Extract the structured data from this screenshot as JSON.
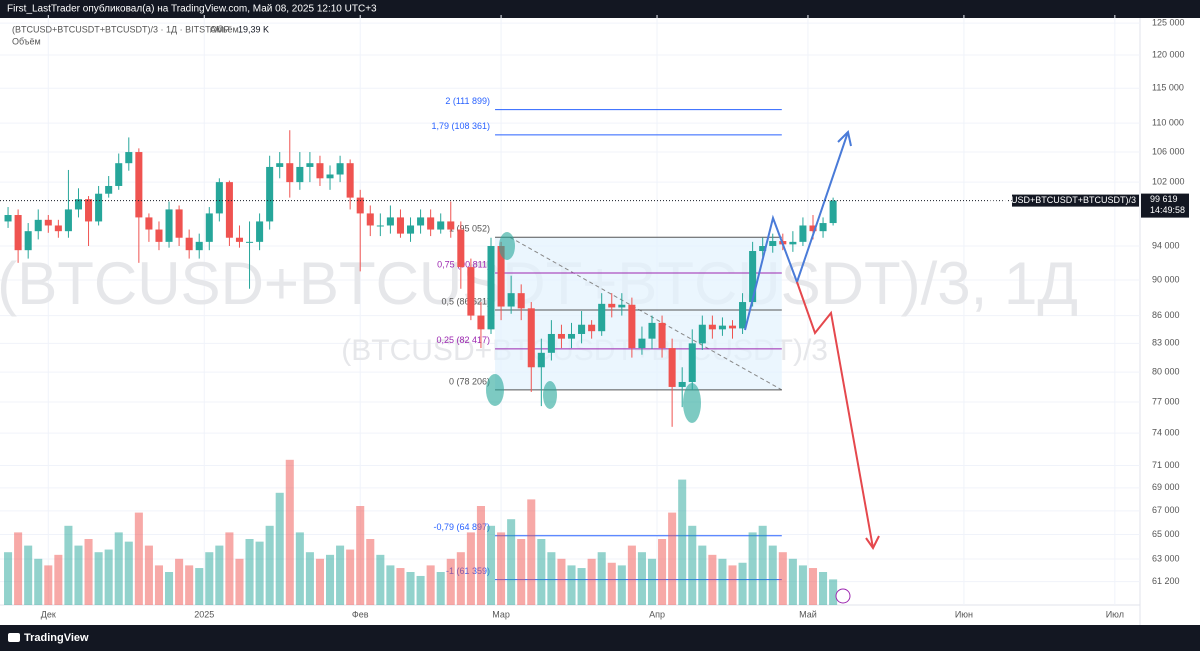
{
  "header": {
    "author_line": "First_LastTrader опубликовал(а) на TradingView.com, Май 08, 2025 12:10 UTC+3"
  },
  "footer": {
    "brand": "TradingView"
  },
  "chart_data": {
    "type": "candlestick",
    "symbol": "(BTCUSD+BTCUSDT+BTCUSDT)/3 · 1Д · BITSTAMP",
    "volume_label": "Объём",
    "volume_last": {
      "value": 19.39,
      "label": "19,39 K"
    },
    "volume_pane_label": "Объём",
    "watermark": "(BTCUSD+BTCUSDT+BTCUSDT)/3, 1Д",
    "watermark_small": "(BTCUSD+BTCUSDT+BTCUSDT)/3",
    "price_tag": "(BTCUSD+BTCUSDT+BTCUSDT)/3",
    "last_price": {
      "value": 99619,
      "label": "99 619"
    },
    "countdown": "14:49:58",
    "up_color": "#26a69a",
    "down_color": "#ef5350",
    "log_scale": true,
    "grid": true,
    "categories": [
      null,
      null,
      null,
      null,
      null,
      null,
      null,
      null,
      null,
      null,
      null,
      null,
      null,
      null,
      null,
      null,
      null,
      null,
      null,
      null,
      null,
      null,
      null,
      null,
      null,
      null,
      null,
      null,
      null,
      null,
      null,
      null,
      null,
      null,
      null,
      null,
      null,
      null,
      null,
      null,
      null,
      null,
      null,
      null,
      null,
      null,
      null,
      null,
      null,
      null,
      null,
      null,
      null,
      null,
      null,
      null,
      null,
      null,
      null,
      null,
      null,
      null,
      null,
      null,
      null,
      null,
      null,
      null,
      null,
      null,
      null,
      null,
      null,
      null,
      null,
      null,
      null,
      null,
      null,
      null,
      null,
      null,
      null
    ],
    "open": [
      97000,
      97800,
      93500,
      95800,
      97200,
      96500,
      95800,
      98500,
      99800,
      97000,
      100500,
      101500,
      104500,
      106000,
      97500,
      96000,
      94500,
      98500,
      95000,
      93500,
      94500,
      98000,
      102000,
      95000,
      94500,
      94500,
      97000,
      104000,
      104500,
      102000,
      104000,
      104500,
      102500,
      103000,
      104500,
      100000,
      98000,
      96500,
      96500,
      97500,
      95500,
      96500,
      97500,
      96000,
      97000,
      96000,
      91500,
      86000,
      84500,
      94000,
      87000,
      88500,
      86800,
      80500,
      82000,
      84000,
      83500,
      84000,
      85000,
      84300,
      87300,
      86900,
      87200,
      82500,
      83500,
      85200,
      82500,
      78500,
      79000,
      83000,
      85000,
      84500,
      84900,
      84600,
      87500,
      93400,
      94000,
      94600,
      94200,
      94500,
      96500,
      95800,
      96800
    ],
    "high": [
      98800,
      98500,
      96800,
      98500,
      97800,
      97200,
      103600,
      101200,
      100200,
      101500,
      102800,
      105800,
      108000,
      106500,
      98000,
      97000,
      99500,
      99000,
      96000,
      95500,
      98800,
      102500,
      102200,
      96500,
      97000,
      98000,
      105500,
      106000,
      109000,
      106000,
      106000,
      105500,
      104200,
      105500,
      105000,
      101000,
      99000,
      98000,
      99000,
      98500,
      97500,
      98500,
      98500,
      98000,
      99500,
      97000,
      92500,
      87500,
      95000,
      94500,
      90500,
      89500,
      87500,
      83500,
      85500,
      85000,
      85200,
      86500,
      85500,
      88500,
      88500,
      88500,
      88000,
      84800,
      86000,
      86000,
      83500,
      80500,
      84500,
      86000,
      86000,
      85800,
      85500,
      88500,
      94500,
      95000,
      95500,
      95500,
      95800,
      97500,
      97800,
      97500,
      100000
    ],
    "low": [
      96200,
      92000,
      92500,
      94800,
      95600,
      95000,
      95000,
      97500,
      94000,
      96500,
      100000,
      101000,
      103500,
      92000,
      94500,
      93500,
      93800,
      94000,
      92500,
      92500,
      93500,
      97000,
      94000,
      93800,
      89000,
      93500,
      96000,
      102500,
      100000,
      101000,
      102000,
      101500,
      101000,
      102000,
      98500,
      91000,
      95200,
      95200,
      95500,
      95000,
      94500,
      95500,
      95200,
      95500,
      95000,
      89000,
      85500,
      82500,
      84000,
      85500,
      86200,
      85500,
      78000,
      76600,
      81200,
      82500,
      82500,
      83000,
      83500,
      83800,
      85800,
      86000,
      81500,
      81800,
      82400,
      81500,
      74600,
      76500,
      78200,
      82300,
      83500,
      83800,
      83500,
      84000,
      87000,
      92700,
      93200,
      93500,
      93300,
      94000,
      94800,
      95000,
      96500
    ],
    "close": [
      97800,
      93500,
      95800,
      97200,
      96500,
      95800,
      98500,
      99800,
      97000,
      100500,
      101500,
      104500,
      106000,
      97500,
      96000,
      94500,
      98500,
      95000,
      93500,
      94500,
      98000,
      102000,
      95000,
      94500,
      94500,
      97000,
      104000,
      104500,
      102000,
      104000,
      104500,
      102500,
      103000,
      104500,
      100000,
      98000,
      96500,
      96500,
      97500,
      95500,
      96500,
      97500,
      96000,
      97000,
      96000,
      91500,
      86000,
      84500,
      94000,
      87000,
      88500,
      86800,
      80500,
      82000,
      84000,
      83500,
      84000,
      85000,
      84300,
      87300,
      86900,
      87200,
      82500,
      83500,
      85200,
      82500,
      78500,
      79000,
      83000,
      85000,
      84500,
      84900,
      84600,
      87500,
      93400,
      94000,
      94600,
      94200,
      94500,
      96500,
      95800,
      96800,
      99619
    ],
    "volume": [
      40,
      55,
      45,
      35,
      30,
      38,
      60,
      45,
      50,
      40,
      42,
      55,
      48,
      70,
      45,
      30,
      25,
      35,
      30,
      28,
      40,
      45,
      55,
      35,
      50,
      48,
      60,
      85,
      110,
      55,
      40,
      35,
      38,
      45,
      42,
      75,
      50,
      38,
      30,
      28,
      25,
      22,
      30,
      25,
      35,
      40,
      55,
      75,
      60,
      55,
      65,
      50,
      80,
      50,
      40,
      35,
      30,
      28,
      35,
      40,
      32,
      30,
      45,
      40,
      35,
      50,
      70,
      95,
      60,
      45,
      38,
      35,
      30,
      32,
      55,
      60,
      45,
      40,
      35,
      30,
      28,
      25,
      19.39
    ],
    "xlim": [
      -0.8,
      112.5
    ],
    "xticks": [
      {
        "value": 4,
        "label": "Дек"
      },
      {
        "value": 19.5,
        "label": "2025"
      },
      {
        "value": 35,
        "label": "Фев"
      },
      {
        "value": 49,
        "label": "Мар"
      },
      {
        "value": 64.5,
        "label": "Апр"
      },
      {
        "value": 79.5,
        "label": "Май"
      },
      {
        "value": 95,
        "label": "Июн"
      },
      {
        "value": 110,
        "label": "Июл"
      }
    ],
    "ylim": [
      59400,
      126300
    ],
    "yticks": [
      {
        "value": 125000,
        "label": "125 000"
      },
      {
        "value": 120000,
        "label": "120 000"
      },
      {
        "value": 115000,
        "label": "115 000"
      },
      {
        "value": 110000,
        "label": "110 000"
      },
      {
        "value": 106000,
        "label": "106 000"
      },
      {
        "value": 102000,
        "label": "102 000"
      },
      {
        "value": 94000,
        "label": "94 000"
      },
      {
        "value": 90000,
        "label": "90 000"
      },
      {
        "value": 86000,
        "label": "86 000"
      },
      {
        "value": 83000,
        "label": "83 000"
      },
      {
        "value": 80000,
        "label": "80 000"
      },
      {
        "value": 77000,
        "label": "77 000"
      },
      {
        "value": 74000,
        "label": "74 000"
      },
      {
        "value": 71000,
        "label": "71 000"
      },
      {
        "value": 69000,
        "label": "69 000"
      },
      {
        "value": 67000,
        "label": "67 000"
      },
      {
        "value": 65000,
        "label": "65 000"
      },
      {
        "value": 63000,
        "label": "63 000"
      },
      {
        "value": 61200,
        "label": "61 200"
      }
    ],
    "fib_range": [
      48.4,
      76.9
    ],
    "fib_levels": [
      {
        "value": 111899,
        "label": "2 (111 899)",
        "color": "#2962ff"
      },
      {
        "value": 108361,
        "label": "1,79 (108 361)",
        "color": "#2962ff"
      },
      {
        "value": 95052,
        "label": "1 (95 052)",
        "color": "#555555"
      },
      {
        "value": 90811,
        "label": "0,75 (90 811)",
        "color": "#9c27b0"
      },
      {
        "value": 86621,
        "label": "0,5 (86 621)",
        "color": "#555555"
      },
      {
        "value": 82417,
        "label": "0,25 (82 417)",
        "color": "#9c27b0"
      },
      {
        "value": 78206,
        "label": "0 (78 206)",
        "color": "#555555"
      },
      {
        "value": 64897,
        "label": "-0,79 (64 897)",
        "color": "#2962ff"
      },
      {
        "value": 61359,
        "label": "-1 (61 359)",
        "color": "#2962ff"
      }
    ]
  }
}
